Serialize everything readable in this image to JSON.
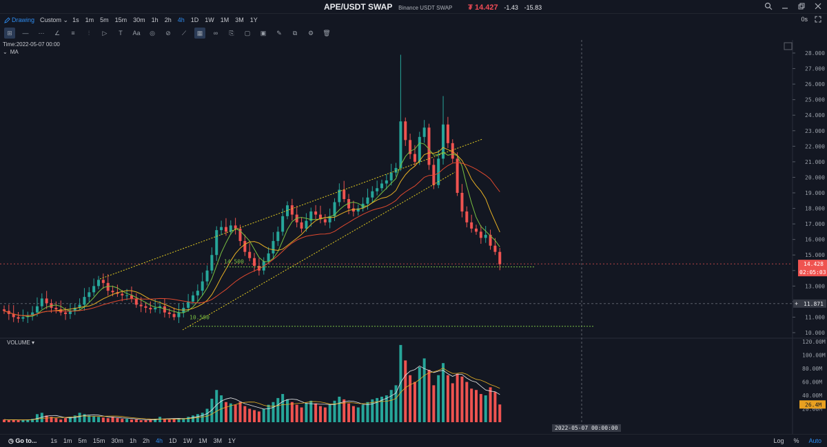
{
  "title": {
    "symbol": "APE/USDT SWAP",
    "exchange": "Binance USDT SWAP",
    "price": "₮ 14.427",
    "change": "-1.43",
    "change_pct": "-15.83"
  },
  "window_icons": [
    "search-icon",
    "minimize-icon",
    "restore-icon",
    "close-icon"
  ],
  "interval_bar": {
    "drawing_label": "Drawing",
    "custom_label": "Custom",
    "intervals": [
      "1s",
      "1m",
      "5m",
      "15m",
      "30m",
      "1h",
      "2h",
      "4h",
      "1D",
      "1W",
      "1M",
      "3M",
      "1Y"
    ],
    "active": "4h",
    "right_label": "0s"
  },
  "tools": [
    "crosshair-icon",
    "horizontal-line-icon",
    "multi-line-icon",
    "angle-line-icon",
    "parallel-lines-icon",
    "fib-retracement-icon",
    "arrow-icon",
    "text-icon",
    "pattern-icon",
    "measure-icon",
    "line-tool-icon",
    "magnet-icon",
    "eraser-icon",
    "visibility-icon",
    "link-icon",
    "note-icon",
    "brush-icon",
    "lock-icon",
    "clone-icon",
    "settings-icon",
    "trash-icon"
  ],
  "legend": {
    "time": "Time:2022-05-07 00:00",
    "ma_label": "MA"
  },
  "volume_label": "VOLUME",
  "colors": {
    "up": "#26a69a",
    "down": "#ef5350",
    "ma_fast": "#7ac142",
    "ma_mid": "#e8b124",
    "ma_slow": "#e0492f",
    "accent": "#2e8cf0"
  },
  "chart_data": {
    "type": "candlestick",
    "symbol": "APE/USDT SWAP",
    "interval": "4h",
    "price_axis": {
      "ticks": [
        "28.000",
        "27.000",
        "26.000",
        "25.000",
        "24.000",
        "23.000",
        "22.000",
        "21.000",
        "20.000",
        "19.000",
        "18.000",
        "17.000",
        "16.000",
        "15.000",
        "14.000",
        "13.000",
        "12.000",
        "11.000",
        "10.000"
      ],
      "range": [
        10,
        28
      ]
    },
    "last_price_label": "14.428",
    "countdown_label": "02:05:03",
    "crosshair_price_label": "11.871",
    "crosshair_date_label": "2022-05-07 00:00:00",
    "fib_labels": [
      "14.500",
      "10.500"
    ],
    "volume_axis": {
      "ticks": [
        "120.00M",
        "100.00M",
        "80.00M",
        "60.00M",
        "40.00M",
        "20.00M"
      ],
      "range": [
        0,
        120
      ]
    },
    "volume_last_label": "26.4M",
    "closes": [
      11.4,
      11.2,
      11.0,
      10.9,
      11.0,
      11.1,
      11.3,
      11.7,
      12.2,
      11.9,
      11.6,
      11.5,
      11.3,
      11.2,
      11.4,
      11.6,
      11.8,
      12.3,
      12.6,
      13.0,
      13.4,
      13.2,
      12.7,
      12.6,
      12.5,
      12.4,
      12.4,
      12.2,
      11.8,
      11.7,
      11.6,
      11.5,
      11.6,
      11.7,
      11.3,
      11.2,
      11.0,
      11.3,
      11.6,
      12.0,
      12.4,
      12.7,
      13.3,
      14.0,
      15.0,
      16.6,
      16.8,
      16.5,
      16.9,
      16.7,
      15.9,
      15.2,
      14.8,
      14.3,
      14.0,
      14.6,
      15.1,
      15.9,
      16.5,
      17.5,
      18.2,
      17.6,
      17.1,
      16.7,
      17.2,
      17.8,
      17.6,
      17.3,
      17.1,
      17.5,
      18.4,
      19.2,
      18.6,
      18.0,
      17.8,
      18.0,
      18.3,
      18.7,
      19.1,
      19.3,
      19.6,
      19.8,
      20.3,
      20.6,
      23.6,
      22.4,
      21.5,
      21.0,
      22.6,
      23.2,
      20.8,
      19.5,
      21.2,
      23.4,
      22.2,
      21.2,
      19.0,
      17.8,
      17.1,
      16.7,
      16.5,
      16.1,
      16.3,
      15.6,
      15.2,
      14.4
    ],
    "volumes_m": [
      4,
      3,
      4,
      3,
      3,
      4,
      5,
      12,
      14,
      10,
      8,
      6,
      4,
      6,
      8,
      10,
      14,
      12,
      10,
      9,
      8,
      7,
      6,
      8,
      6,
      5,
      5,
      4,
      4,
      3,
      3,
      4,
      5,
      8,
      5,
      4,
      5,
      6,
      6,
      8,
      10,
      12,
      14,
      20,
      35,
      48,
      40,
      30,
      28,
      26,
      30,
      24,
      20,
      18,
      16,
      20,
      26,
      30,
      36,
      42,
      34,
      30,
      26,
      22,
      28,
      32,
      28,
      24,
      22,
      26,
      32,
      38,
      34,
      28,
      24,
      22,
      26,
      30,
      34,
      36,
      38,
      40,
      48,
      55,
      115,
      92,
      70,
      60,
      82,
      95,
      78,
      55,
      70,
      88,
      70,
      58,
      72,
      68,
      60,
      50,
      48,
      42,
      40,
      52,
      45,
      26.4
    ]
  },
  "bottom_bar": {
    "goto_label": "Go to...",
    "intervals": [
      "1s",
      "1m",
      "5m",
      "15m",
      "30m",
      "1h",
      "2h",
      "4h",
      "1D",
      "1W",
      "1M",
      "3M",
      "1Y"
    ],
    "active": "4h",
    "log_label": "Log",
    "pct_label": "%",
    "auto_label": "Auto"
  }
}
